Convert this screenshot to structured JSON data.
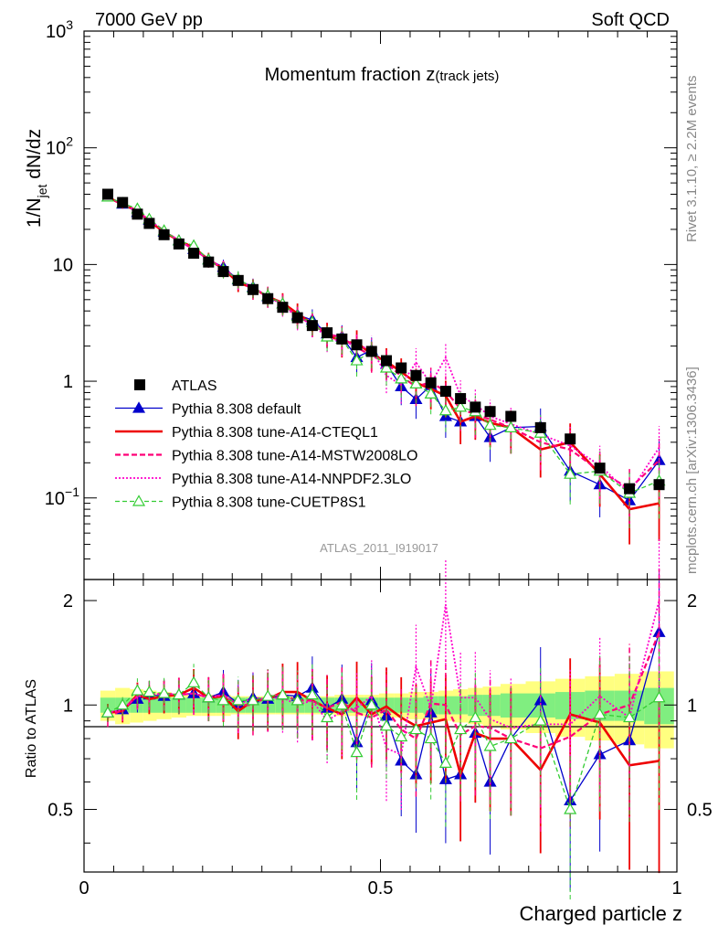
{
  "header": {
    "left": "7000 GeV pp",
    "right": "Soft QCD"
  },
  "side": {
    "rivet": "Rivet 3.1.10, ≥ 2.2M events",
    "mcplots": "mcplots.cern.ch [arXiv:1306.3436]"
  },
  "analysis_label": "ATLAS_2011_I919017",
  "chart_data": [
    {
      "type": "scatter",
      "panel": "main",
      "title_main": "Momentum fraction ",
      "title_var": "z",
      "title_sub": "(track jets)",
      "ylabel": "1/N_jet dN/dz",
      "yscale": "log",
      "ylim": [
        0.02,
        1000
      ],
      "xlim": [
        0,
        1
      ],
      "y_tick_labels": [
        "10^-1",
        "1",
        "10",
        "10^2",
        "10^3"
      ],
      "x": [
        0.04,
        0.065,
        0.09,
        0.11,
        0.135,
        0.16,
        0.185,
        0.21,
        0.235,
        0.26,
        0.285,
        0.31,
        0.335,
        0.36,
        0.385,
        0.41,
        0.435,
        0.46,
        0.485,
        0.51,
        0.535,
        0.56,
        0.585,
        0.61,
        0.635,
        0.66,
        0.685,
        0.72,
        0.77,
        0.82,
        0.87,
        0.92,
        0.97
      ],
      "series": [
        {
          "name": "ATLAS",
          "style": "data",
          "color": "#000000",
          "values": [
            40,
            34,
            27,
            22.5,
            18,
            15,
            12.5,
            10.5,
            8.7,
            7.3,
            6.1,
            5.1,
            4.3,
            3.5,
            3.0,
            2.6,
            2.3,
            2.05,
            1.8,
            1.5,
            1.3,
            1.12,
            0.97,
            0.82,
            0.71,
            0.6,
            0.55,
            0.5,
            0.4,
            0.32,
            0.18,
            0.12,
            0.13
          ]
        },
        {
          "name": "Pythia 8.308 default",
          "style": "blue",
          "color": "#0000cc",
          "values": [
            38,
            33,
            28,
            24,
            19,
            16,
            13.5,
            11,
            9.5,
            7.4,
            6.4,
            5.3,
            4.6,
            3.7,
            3.35,
            2.55,
            2.4,
            1.6,
            1.85,
            1.4,
            0.9,
            0.7,
            0.92,
            0.5,
            0.45,
            0.5,
            0.33,
            0.4,
            0.41,
            0.17,
            0.13,
            0.095,
            0.21
          ]
        },
        {
          "name": "Pythia 8.308 tune-A14-CTEQL1",
          "style": "red",
          "color": "#ee0000",
          "values": [
            38,
            32.5,
            29,
            23.5,
            19,
            16,
            14,
            11,
            9.2,
            7.0,
            6.3,
            5.3,
            4.7,
            3.8,
            3.1,
            2.55,
            2.15,
            2.15,
            1.7,
            1.48,
            1.2,
            0.97,
            0.86,
            0.75,
            0.45,
            0.5,
            0.44,
            0.4,
            0.26,
            0.3,
            0.16,
            0.08,
            0.09
          ]
        },
        {
          "name": "Pythia 8.308 tune-A14-MSTW2008LO",
          "style": "magenta-dash",
          "color": "#ff0077",
          "values": [
            37,
            33,
            28.5,
            24,
            19.5,
            16,
            13.5,
            11,
            9.3,
            7.3,
            6.1,
            5.4,
            4.6,
            3.6,
            3.1,
            2.55,
            2.35,
            1.95,
            1.65,
            1.45,
            1.1,
            0.9,
            0.98,
            0.82,
            0.58,
            0.52,
            0.47,
            0.4,
            0.3,
            0.26,
            0.17,
            0.12,
            0.21
          ]
        },
        {
          "name": "Pythia 8.308 tune-A14-NNPDF2.3LO",
          "style": "magenta-dot",
          "color": "#ff00cc",
          "values": [
            38,
            33,
            28.5,
            24,
            19.5,
            16,
            13.5,
            11,
            9.3,
            7.3,
            6.4,
            5.3,
            4.5,
            3.5,
            3.1,
            2.35,
            2.2,
            2.0,
            1.9,
            1.12,
            0.93,
            1.45,
            0.95,
            1.6,
            0.75,
            0.63,
            0.5,
            0.43,
            0.35,
            0.28,
            0.19,
            0.11,
            0.27
          ]
        },
        {
          "name": "Pythia 8.308 tune-CUETP8S1",
          "style": "green-dash",
          "color": "#33cc33",
          "values": [
            38,
            33.5,
            30,
            24.5,
            19.5,
            16,
            14.5,
            11,
            9.0,
            7.5,
            6.3,
            5.4,
            4.6,
            3.6,
            3.2,
            2.4,
            2.3,
            1.5,
            1.8,
            1.3,
            1.05,
            0.95,
            0.78,
            0.56,
            0.6,
            0.55,
            0.42,
            0.4,
            0.36,
            0.16,
            0.17,
            0.11,
            0.14
          ]
        }
      ]
    },
    {
      "type": "scatter",
      "panel": "ratio",
      "ylabel": "Ratio to ATLAS",
      "xlabel": "Charged particle z",
      "ylim": [
        0.33,
        2.3
      ],
      "xlim": [
        0,
        1
      ],
      "y_tick_labels": [
        "0.5",
        "1",
        "2"
      ],
      "x_tick_labels": [
        "0",
        "0.5",
        "1"
      ],
      "band_inner": [
        0.05,
        0.05,
        0.05,
        0.05,
        0.05,
        0.05,
        0.05,
        0.05,
        0.05,
        0.05,
        0.05,
        0.05,
        0.05,
        0.05,
        0.05,
        0.05,
        0.05,
        0.05,
        0.05,
        0.05,
        0.05,
        0.05,
        0.06,
        0.06,
        0.06,
        0.07,
        0.07,
        0.08,
        0.08,
        0.09,
        0.1,
        0.1,
        0.12
      ],
      "band_outer": [
        0.1,
        0.12,
        0.11,
        0.1,
        0.09,
        0.08,
        0.07,
        0.07,
        0.07,
        0.06,
        0.06,
        0.06,
        0.06,
        0.06,
        0.06,
        0.06,
        0.07,
        0.07,
        0.07,
        0.08,
        0.08,
        0.09,
        0.09,
        0.1,
        0.11,
        0.12,
        0.13,
        0.15,
        0.17,
        0.19,
        0.21,
        0.23,
        0.25
      ],
      "series": [
        {
          "name": "Pythia 8.308 default",
          "style": "blue",
          "values": [
            0.95,
            0.97,
            1.04,
            1.07,
            1.06,
            1.07,
            1.08,
            1.05,
            1.09,
            1.01,
            1.05,
            1.04,
            1.07,
            1.06,
            1.12,
            0.98,
            1.04,
            0.78,
            1.03,
            0.93,
            0.69,
            0.63,
            0.95,
            0.61,
            0.63,
            0.83,
            0.6,
            0.8,
            1.03,
            0.53,
            0.72,
            0.79,
            1.62
          ]
        },
        {
          "name": "Pythia 8.308 tune-A14-CTEQL1",
          "style": "red",
          "values": [
            0.95,
            0.96,
            1.07,
            1.04,
            1.06,
            1.07,
            1.12,
            1.05,
            1.06,
            0.96,
            1.03,
            1.04,
            1.09,
            1.09,
            1.03,
            0.98,
            0.94,
            1.05,
            0.94,
            0.99,
            0.92,
            0.87,
            0.89,
            0.91,
            0.63,
            0.83,
            0.8,
            0.8,
            0.65,
            0.94,
            0.89,
            0.67,
            0.69
          ]
        },
        {
          "name": "Pythia 8.308 tune-A14-MSTW2008LO",
          "style": "magenta-dash",
          "values": [
            0.92,
            0.97,
            1.06,
            1.07,
            1.08,
            1.07,
            1.08,
            1.05,
            1.07,
            1.0,
            1.0,
            1.06,
            1.07,
            1.03,
            1.03,
            0.98,
            1.02,
            0.95,
            0.92,
            0.97,
            0.85,
            0.8,
            1.01,
            1.0,
            0.82,
            0.87,
            0.86,
            0.8,
            0.75,
            0.81,
            0.94,
            1.0,
            1.62
          ]
        },
        {
          "name": "Pythia 8.308 tune-A14-NNPDF2.3LO",
          "style": "magenta-dot",
          "values": [
            0.95,
            0.97,
            1.06,
            1.07,
            1.08,
            1.07,
            1.08,
            1.05,
            1.07,
            1.0,
            1.05,
            1.04,
            1.05,
            1.0,
            1.03,
            0.9,
            0.96,
            0.98,
            1.06,
            0.75,
            0.72,
            1.29,
            0.98,
            1.95,
            1.05,
            1.05,
            0.91,
            0.86,
            0.88,
            0.88,
            1.06,
            0.92,
            2.0
          ]
        },
        {
          "name": "Pythia 8.308 tune-CUETP8S1",
          "style": "green-dash",
          "values": [
            0.95,
            1.0,
            1.1,
            1.09,
            1.08,
            1.07,
            1.16,
            1.05,
            1.03,
            1.03,
            1.03,
            1.06,
            1.07,
            1.03,
            1.07,
            0.92,
            1.0,
            0.73,
            1.0,
            0.87,
            0.81,
            0.85,
            0.8,
            0.68,
            0.85,
            0.92,
            0.76,
            0.8,
            0.9,
            0.5,
            0.94,
            0.92,
            1.05
          ]
        }
      ]
    }
  ]
}
